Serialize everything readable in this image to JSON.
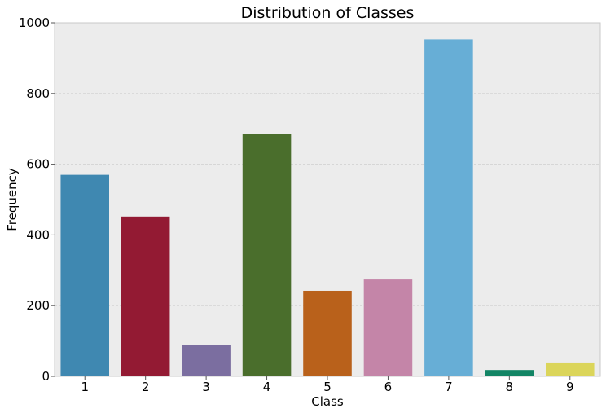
{
  "chart_data": {
    "type": "bar",
    "title": "Distribution of Classes",
    "xlabel": "Class",
    "ylabel": "Frequency",
    "categories": [
      "1",
      "2",
      "3",
      "4",
      "5",
      "6",
      "7",
      "8",
      "9"
    ],
    "values": [
      570,
      452,
      89,
      686,
      242,
      274,
      953,
      18,
      37
    ],
    "ylim": [
      0,
      1000
    ],
    "yticks": [
      0,
      200,
      400,
      600,
      800,
      1000
    ],
    "grid": true,
    "colors": [
      "#3f88b1",
      "#931a33",
      "#7b6ea0",
      "#4a6e2c",
      "#b9611b",
      "#c485a8",
      "#67aed6",
      "#138565",
      "#dbd55a"
    ],
    "plot_background": "#ececec",
    "grid_color": "#cfcfcf"
  }
}
